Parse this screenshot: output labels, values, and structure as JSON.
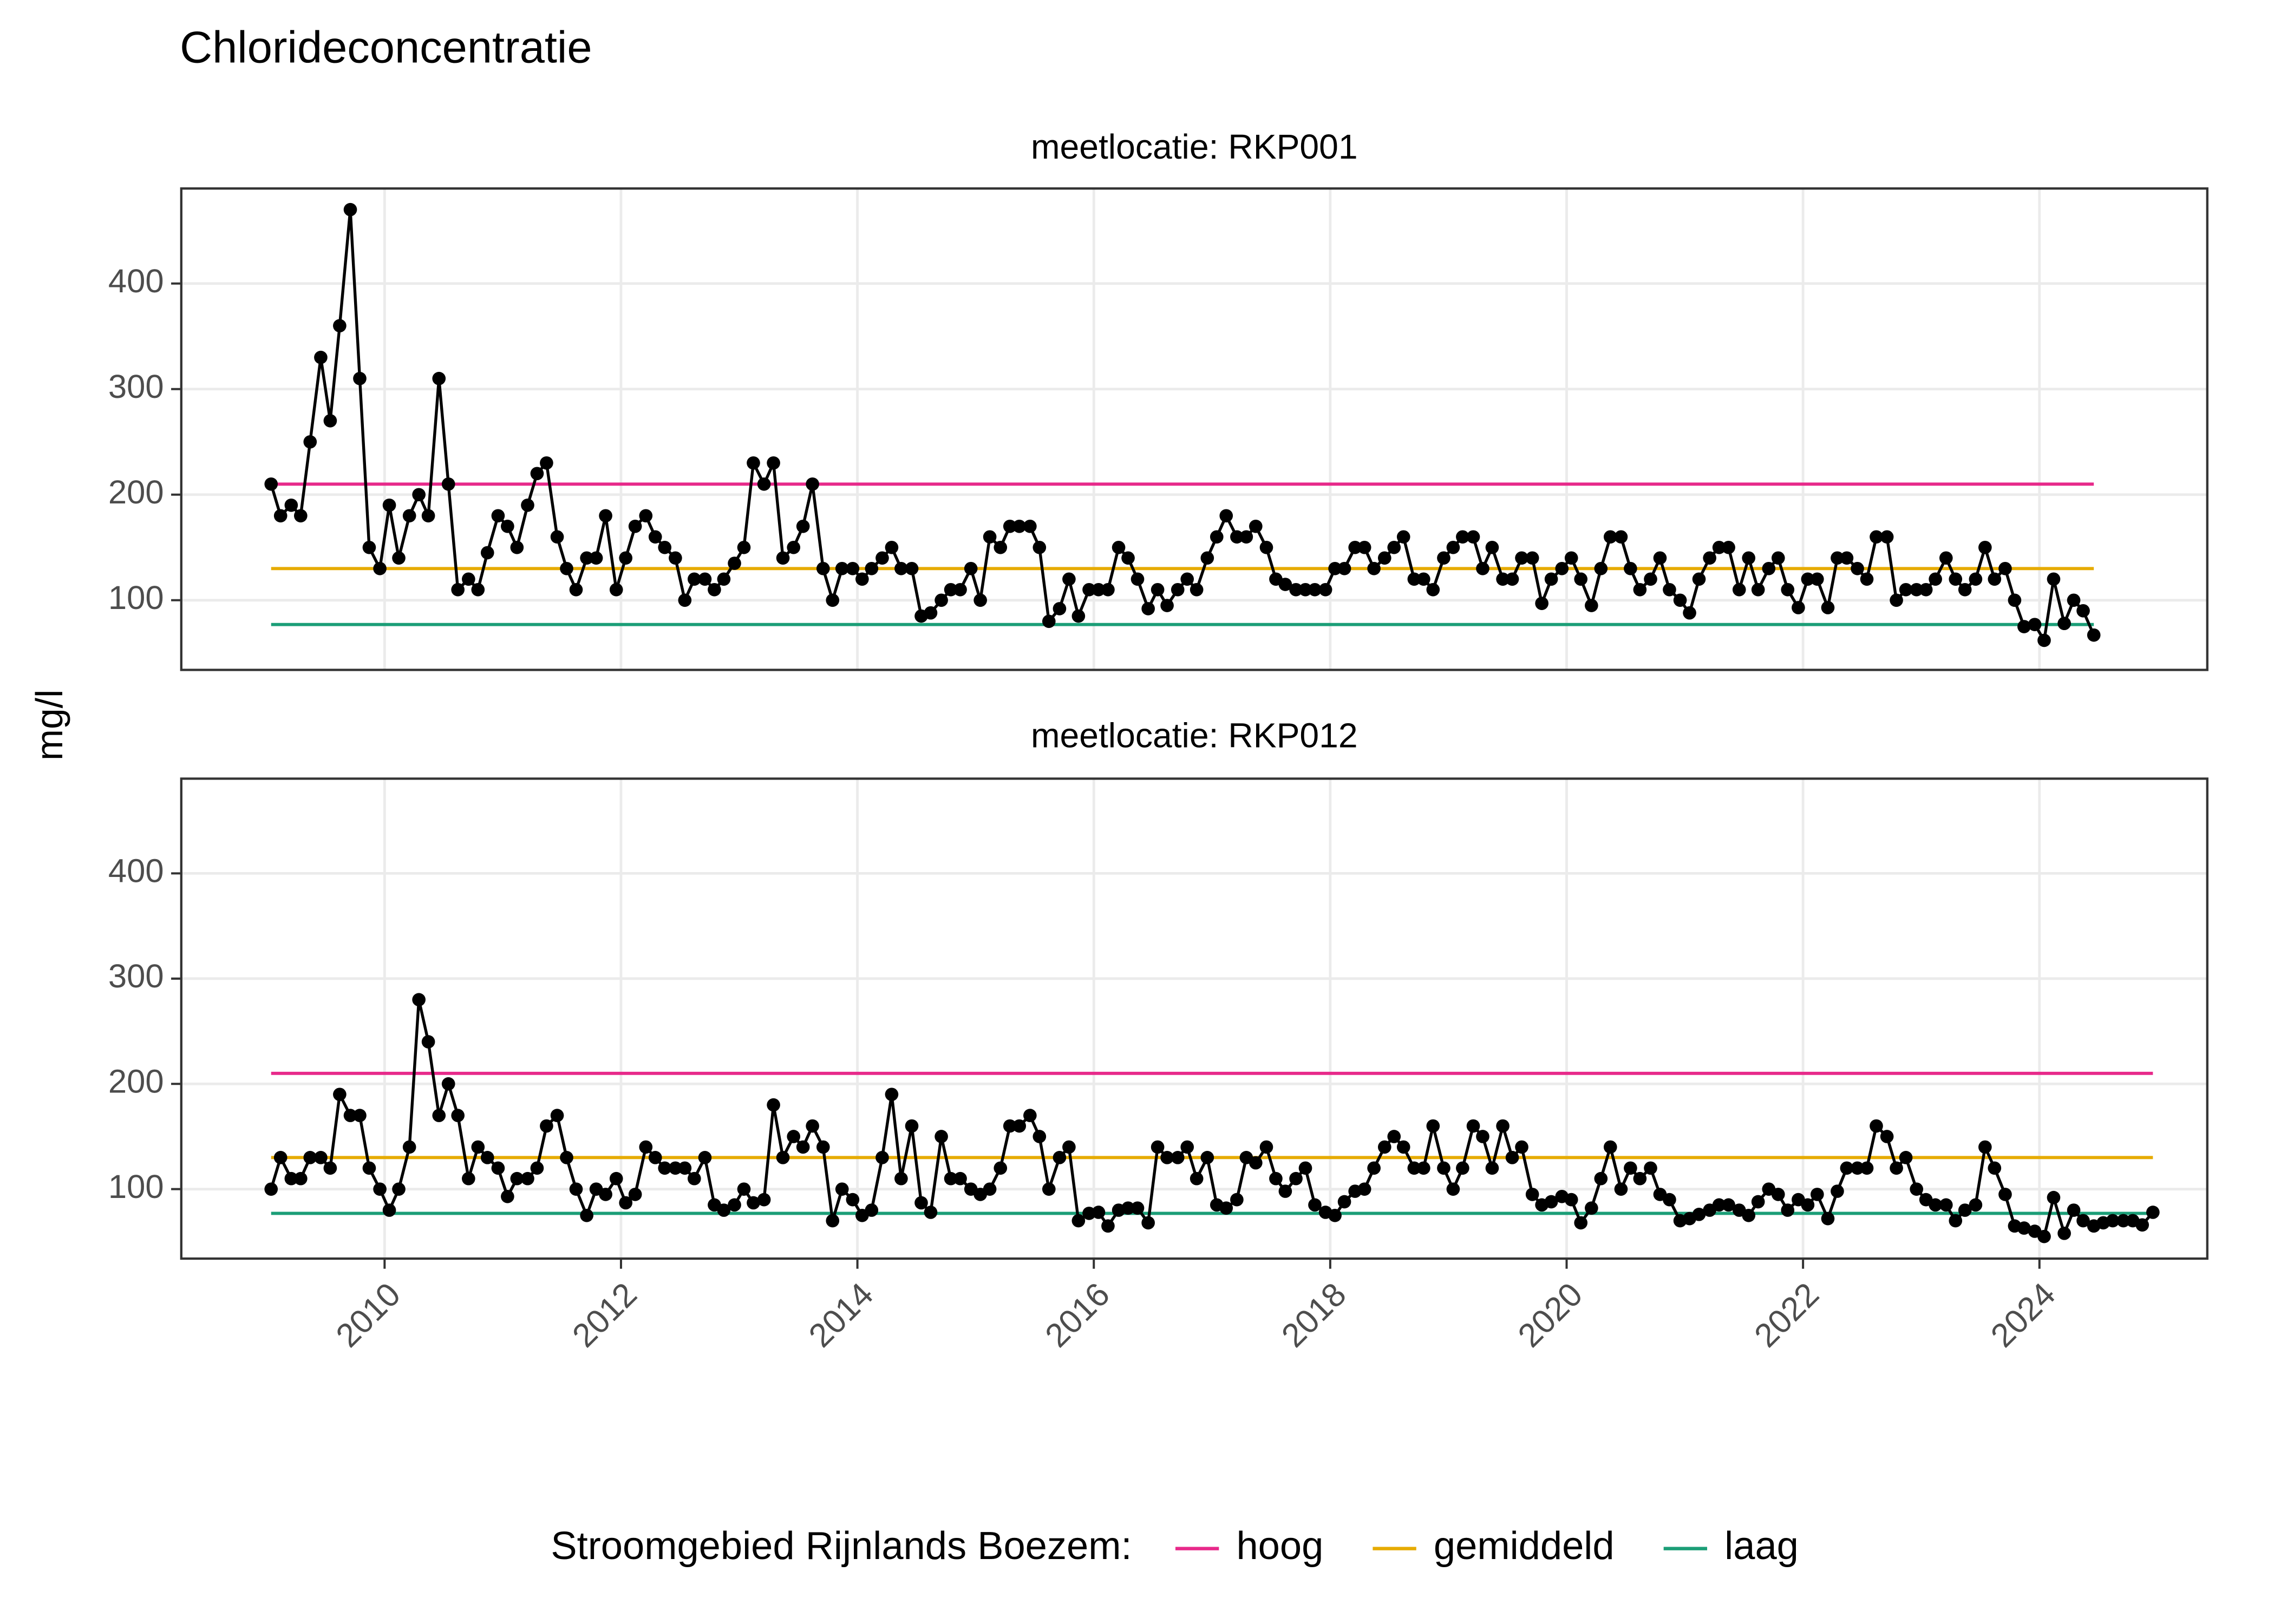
{
  "title": "Chlorideconcentratie",
  "y_label": "mg/l",
  "legend": {
    "title": "Stroomgebied Rijnlands Boezem:",
    "entries": [
      {
        "name": "hoog",
        "color": "#e7298a"
      },
      {
        "name": "gemiddeld",
        "color": "#e6ab02"
      },
      {
        "name": "laag",
        "color": "#1b9e77"
      }
    ]
  },
  "chart_data": [
    {
      "type": "line",
      "title": "meetlocatie: RKP001",
      "color": "#000000",
      "xlim": [
        2008.28,
        2025.42
      ],
      "xticks": [
        2010,
        2012,
        2014,
        2016,
        2018,
        2020,
        2022,
        2024
      ],
      "ylim": [
        34,
        490
      ],
      "yticks": [
        100,
        200,
        300,
        400
      ],
      "grid": true,
      "levels": [
        {
          "value": 210,
          "x_range": [
            2009.04,
            2024.46
          ]
        },
        {
          "value": 130,
          "x_range": [
            2009.04,
            2024.46
          ]
        },
        {
          "value": 77,
          "x_range": [
            2009.04,
            2024.46
          ]
        }
      ],
      "x": [
        2009.04,
        2009.12,
        2009.21,
        2009.29,
        2009.37,
        2009.46,
        2009.54,
        2009.62,
        2009.71,
        2009.79,
        2009.87,
        2009.96,
        2010.04,
        2010.12,
        2010.21,
        2010.29,
        2010.37,
        2010.46,
        2010.54,
        2010.62,
        2010.71,
        2010.79,
        2010.87,
        2010.96,
        2011.04,
        2011.12,
        2011.21,
        2011.29,
        2011.37,
        2011.46,
        2011.54,
        2011.62,
        2011.71,
        2011.79,
        2011.87,
        2011.96,
        2012.04,
        2012.12,
        2012.21,
        2012.29,
        2012.37,
        2012.46,
        2012.54,
        2012.62,
        2012.71,
        2012.79,
        2012.87,
        2012.96,
        2013.04,
        2013.12,
        2013.21,
        2013.29,
        2013.37,
        2013.46,
        2013.54,
        2013.62,
        2013.71,
        2013.79,
        2013.87,
        2013.96,
        2014.04,
        2014.12,
        2014.21,
        2014.29,
        2014.37,
        2014.46,
        2014.54,
        2014.62,
        2014.71,
        2014.79,
        2014.87,
        2014.96,
        2015.04,
        2015.12,
        2015.21,
        2015.29,
        2015.37,
        2015.46,
        2015.54,
        2015.62,
        2015.71,
        2015.79,
        2015.87,
        2015.96,
        2016.04,
        2016.12,
        2016.21,
        2016.29,
        2016.37,
        2016.46,
        2016.54,
        2016.62,
        2016.71,
        2016.79,
        2016.87,
        2016.96,
        2017.04,
        2017.12,
        2017.21,
        2017.29,
        2017.37,
        2017.46,
        2017.54,
        2017.62,
        2017.71,
        2017.79,
        2017.87,
        2017.96,
        2018.04,
        2018.12,
        2018.21,
        2018.29,
        2018.37,
        2018.46,
        2018.54,
        2018.62,
        2018.71,
        2018.79,
        2018.87,
        2018.96,
        2019.04,
        2019.12,
        2019.21,
        2019.29,
        2019.37,
        2019.46,
        2019.54,
        2019.62,
        2019.71,
        2019.79,
        2019.87,
        2019.96,
        2020.04,
        2020.12,
        2020.21,
        2020.29,
        2020.37,
        2020.46,
        2020.54,
        2020.62,
        2020.71,
        2020.79,
        2020.87,
        2020.96,
        2021.04,
        2021.12,
        2021.21,
        2021.29,
        2021.37,
        2021.46,
        2021.54,
        2021.62,
        2021.71,
        2021.79,
        2021.87,
        2021.96,
        2022.04,
        2022.12,
        2022.21,
        2022.29,
        2022.37,
        2022.46,
        2022.54,
        2022.62,
        2022.71,
        2022.79,
        2022.87,
        2022.96,
        2023.04,
        2023.12,
        2023.21,
        2023.29,
        2023.37,
        2023.46,
        2023.54,
        2023.62,
        2023.71,
        2023.79,
        2023.87,
        2023.96,
        2024.04,
        2024.12,
        2024.21,
        2024.29,
        2024.37,
        2024.46
      ],
      "values": [
        210,
        180,
        190,
        180,
        250,
        330,
        270,
        360,
        470,
        310,
        150,
        130,
        190,
        140,
        180,
        200,
        180,
        310,
        210,
        110,
        120,
        110,
        145,
        180,
        170,
        150,
        190,
        220,
        230,
        160,
        130,
        110,
        140,
        140,
        180,
        110,
        140,
        170,
        180,
        160,
        150,
        140,
        100,
        120,
        120,
        110,
        120,
        135,
        150,
        230,
        210,
        230,
        140,
        150,
        170,
        210,
        130,
        100,
        130,
        130,
        120,
        130,
        140,
        150,
        130,
        130,
        85,
        88,
        100,
        110,
        110,
        130,
        100,
        160,
        150,
        170,
        170,
        170,
        150,
        80,
        92,
        120,
        85,
        110,
        110,
        110,
        150,
        140,
        120,
        92,
        110,
        95,
        110,
        120,
        110,
        140,
        160,
        180,
        160,
        160,
        170,
        150,
        120,
        115,
        110,
        110,
        110,
        110,
        130,
        130,
        150,
        150,
        130,
        140,
        150,
        160,
        120,
        120,
        110,
        140,
        150,
        160,
        160,
        130,
        150,
        120,
        120,
        140,
        140,
        97,
        120,
        130,
        140,
        120,
        95,
        130,
        160,
        160,
        130,
        110,
        120,
        140,
        110,
        100,
        88,
        120,
        140,
        150,
        150,
        110,
        140,
        110,
        130,
        140,
        110,
        93,
        120,
        120,
        93,
        140,
        140,
        130,
        120,
        160,
        160,
        100,
        110,
        110,
        110,
        120,
        140,
        120,
        110,
        120,
        150,
        120,
        130,
        100,
        75,
        77,
        62,
        120,
        78,
        100,
        90,
        67
      ]
    },
    {
      "type": "line",
      "title": "meetlocatie: RKP012",
      "color": "#000000",
      "xlim": [
        2008.28,
        2025.42
      ],
      "xticks": [
        2010,
        2012,
        2014,
        2016,
        2018,
        2020,
        2022,
        2024
      ],
      "ylim": [
        34,
        490
      ],
      "yticks": [
        100,
        200,
        300,
        400
      ],
      "grid": true,
      "levels": [
        {
          "value": 210,
          "x_range": [
            2009.04,
            2024.96
          ]
        },
        {
          "value": 130,
          "x_range": [
            2009.04,
            2024.96
          ]
        },
        {
          "value": 77,
          "x_range": [
            2009.04,
            2024.96
          ]
        }
      ],
      "x": [
        2009.04,
        2009.12,
        2009.21,
        2009.29,
        2009.37,
        2009.46,
        2009.54,
        2009.62,
        2009.71,
        2009.79,
        2009.87,
        2009.96,
        2010.04,
        2010.12,
        2010.21,
        2010.29,
        2010.37,
        2010.46,
        2010.54,
        2010.62,
        2010.71,
        2010.79,
        2010.87,
        2010.96,
        2011.04,
        2011.12,
        2011.21,
        2011.29,
        2011.37,
        2011.46,
        2011.54,
        2011.62,
        2011.71,
        2011.79,
        2011.87,
        2011.96,
        2012.04,
        2012.12,
        2012.21,
        2012.29,
        2012.37,
        2012.46,
        2012.54,
        2012.62,
        2012.71,
        2012.79,
        2012.87,
        2012.96,
        2013.04,
        2013.12,
        2013.21,
        2013.29,
        2013.37,
        2013.46,
        2013.54,
        2013.62,
        2013.71,
        2013.79,
        2013.87,
        2013.96,
        2014.04,
        2014.12,
        2014.21,
        2014.29,
        2014.37,
        2014.46,
        2014.54,
        2014.62,
        2014.71,
        2014.79,
        2014.87,
        2014.96,
        2015.04,
        2015.12,
        2015.21,
        2015.29,
        2015.37,
        2015.46,
        2015.54,
        2015.62,
        2015.71,
        2015.79,
        2015.87,
        2015.96,
        2016.04,
        2016.12,
        2016.21,
        2016.29,
        2016.37,
        2016.46,
        2016.54,
        2016.62,
        2016.71,
        2016.79,
        2016.87,
        2016.96,
        2017.04,
        2017.12,
        2017.21,
        2017.29,
        2017.37,
        2017.46,
        2017.54,
        2017.62,
        2017.71,
        2017.79,
        2017.87,
        2017.96,
        2018.04,
        2018.12,
        2018.21,
        2018.29,
        2018.37,
        2018.46,
        2018.54,
        2018.62,
        2018.71,
        2018.79,
        2018.87,
        2018.96,
        2019.04,
        2019.12,
        2019.21,
        2019.29,
        2019.37,
        2019.46,
        2019.54,
        2019.62,
        2019.71,
        2019.79,
        2019.87,
        2019.96,
        2020.04,
        2020.12,
        2020.21,
        2020.29,
        2020.37,
        2020.46,
        2020.54,
        2020.62,
        2020.71,
        2020.79,
        2020.87,
        2020.96,
        2021.04,
        2021.12,
        2021.21,
        2021.29,
        2021.37,
        2021.46,
        2021.54,
        2021.62,
        2021.71,
        2021.79,
        2021.87,
        2021.96,
        2022.04,
        2022.12,
        2022.21,
        2022.29,
        2022.37,
        2022.46,
        2022.54,
        2022.62,
        2022.71,
        2022.79,
        2022.87,
        2022.96,
        2023.04,
        2023.12,
        2023.21,
        2023.29,
        2023.37,
        2023.46,
        2023.54,
        2023.62,
        2023.71,
        2023.79,
        2023.87,
        2023.96,
        2024.04,
        2024.12,
        2024.21,
        2024.29,
        2024.37,
        2024.46,
        2024.54,
        2024.62,
        2024.71,
        2024.79,
        2024.87,
        2024.96
      ],
      "values": [
        100,
        130,
        110,
        110,
        130,
        130,
        120,
        190,
        170,
        170,
        120,
        100,
        80,
        100,
        140,
        280,
        240,
        170,
        200,
        170,
        110,
        140,
        130,
        120,
        93,
        110,
        110,
        120,
        160,
        170,
        130,
        100,
        75,
        100,
        95,
        110,
        87,
        95,
        140,
        130,
        120,
        120,
        120,
        110,
        130,
        85,
        80,
        85,
        100,
        87,
        90,
        180,
        130,
        150,
        140,
        160,
        140,
        70,
        100,
        90,
        75,
        80,
        130,
        190,
        110,
        160,
        87,
        78,
        150,
        110,
        110,
        100,
        95,
        100,
        120,
        160,
        160,
        170,
        150,
        100,
        130,
        140,
        70,
        77,
        78,
        65,
        80,
        82,
        82,
        68,
        140,
        130,
        130,
        140,
        110,
        130,
        85,
        82,
        90,
        130,
        125,
        140,
        110,
        98,
        110,
        120,
        85,
        78,
        75,
        88,
        98,
        100,
        120,
        140,
        150,
        140,
        120,
        120,
        160,
        120,
        100,
        120,
        160,
        150,
        120,
        160,
        130,
        140,
        95,
        85,
        88,
        93,
        90,
        68,
        82,
        110,
        140,
        100,
        120,
        110,
        120,
        95,
        90,
        70,
        72,
        76,
        80,
        85,
        85,
        80,
        75,
        88,
        100,
        95,
        80,
        90,
        85,
        95,
        72,
        98,
        120,
        120,
        120,
        160,
        150,
        120,
        130,
        100,
        90,
        85,
        85,
        70,
        80,
        85,
        140,
        120,
        95,
        65,
        63,
        60,
        55,
        92,
        58,
        80,
        70,
        65,
        68,
        70,
        70,
        70,
        66,
        78
      ]
    }
  ]
}
